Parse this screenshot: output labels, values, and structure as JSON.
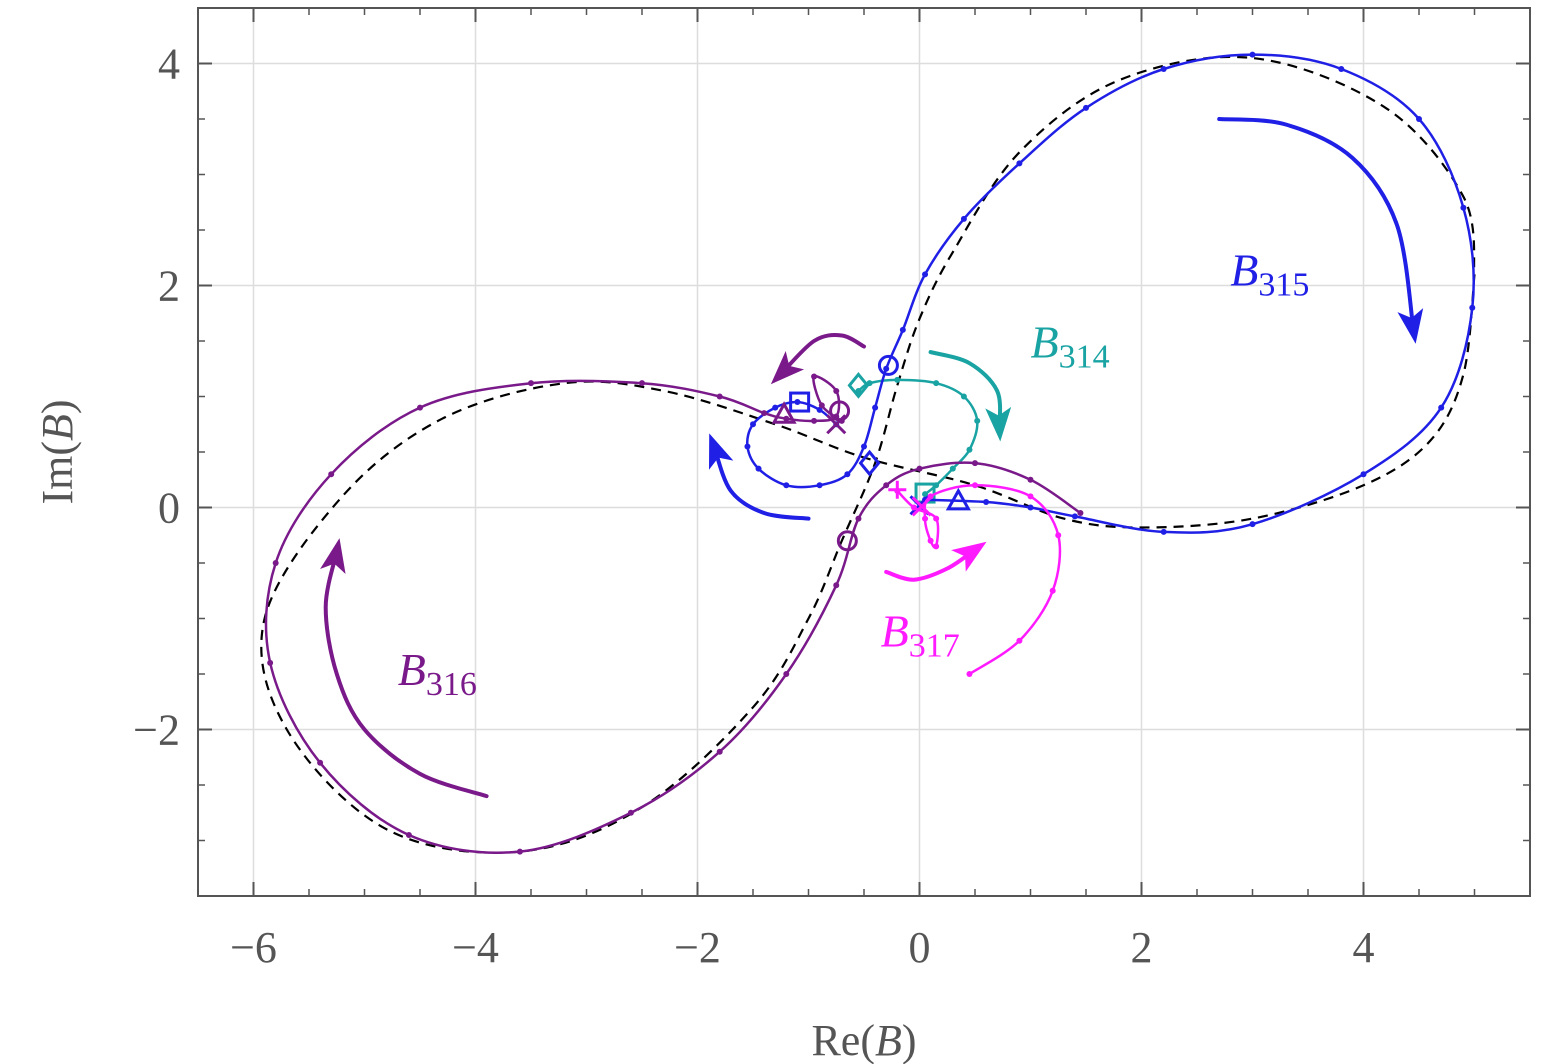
{
  "chart_data": {
    "type": "line",
    "xlabel_prefix": "Re(",
    "xlabel_var": "B",
    "xlabel_suffix": ")",
    "ylabel_prefix": "Im(",
    "ylabel_var": "B",
    "ylabel_suffix": ")",
    "xlim": [
      -6.5,
      5.5
    ],
    "ylim": [
      -3.5,
      4.5
    ],
    "x_ticks": [
      -6,
      -4,
      -2,
      0,
      2,
      4
    ],
    "x_tick_labels": [
      "−6",
      "−4",
      "−2",
      "0",
      "2",
      "4"
    ],
    "y_ticks": [
      -2,
      0,
      2,
      4
    ],
    "y_tick_labels": [
      "−2",
      "0",
      "2",
      "4"
    ],
    "grid": true,
    "colors": {
      "reference": "#000000",
      "B314": "#1aa3a3",
      "B315": "#1f1fe6",
      "B316": "#7a1a8a",
      "B317": "#ff1aff"
    },
    "reference_curve": {
      "style": "dashed",
      "points": [
        [
          5.0,
          2.1
        ],
        [
          4.9,
          1.2
        ],
        [
          4.6,
          0.6
        ],
        [
          4.0,
          0.2
        ],
        [
          3.0,
          -0.1
        ],
        [
          2.0,
          -0.18
        ],
        [
          1.3,
          -0.1
        ],
        [
          0.5,
          0.2
        ],
        [
          -0.5,
          0.45
        ],
        [
          -1.3,
          0.75
        ],
        [
          -2.3,
          1.05
        ],
        [
          -3.2,
          1.12
        ],
        [
          -4.3,
          0.8
        ],
        [
          -5.2,
          0.1
        ],
        [
          -5.9,
          -1.0
        ],
        [
          -5.7,
          -2.0
        ],
        [
          -4.8,
          -2.9
        ],
        [
          -3.6,
          -3.1
        ],
        [
          -2.5,
          -2.7
        ],
        [
          -1.5,
          -1.8
        ],
        [
          -1.0,
          -1.0
        ],
        [
          -0.7,
          -0.3
        ],
        [
          -0.4,
          0.4
        ],
        [
          -0.2,
          1.1
        ],
        [
          0.0,
          1.7
        ],
        [
          0.3,
          2.3
        ],
        [
          0.9,
          3.2
        ],
        [
          1.8,
          3.85
        ],
        [
          3.0,
          4.05
        ],
        [
          4.2,
          3.6
        ],
        [
          4.9,
          2.8
        ],
        [
          5.0,
          2.1
        ]
      ]
    },
    "series": [
      {
        "name": "B314",
        "label_sub": "314",
        "points": [
          [
            -0.55,
            1.05
          ],
          [
            -0.45,
            1.12
          ],
          [
            -0.2,
            1.15
          ],
          [
            0.15,
            1.12
          ],
          [
            0.4,
            1.0
          ],
          [
            0.52,
            0.78
          ],
          [
            0.45,
            0.52
          ],
          [
            0.3,
            0.35
          ],
          [
            0.15,
            0.2
          ],
          [
            0.05,
            0.12
          ]
        ],
        "markers": [
          {
            "shape": "diamond",
            "x": -0.55,
            "y": 1.1
          },
          {
            "shape": "square",
            "x": 0.05,
            "y": 0.13
          }
        ],
        "arrow": {
          "points": [
            [
              0.1,
              1.4
            ],
            [
              0.45,
              1.3
            ],
            [
              0.7,
              1.05
            ],
            [
              0.72,
              0.72
            ]
          ]
        },
        "label_pos": [
          1.0,
          1.35
        ]
      },
      {
        "name": "B315",
        "label_sub": "315",
        "points": [
          [
            0.05,
            0.07
          ],
          [
            0.6,
            0.05
          ],
          [
            1.0,
            0.0
          ],
          [
            1.4,
            -0.08
          ],
          [
            2.2,
            -0.22
          ],
          [
            3.0,
            -0.15
          ],
          [
            4.0,
            0.3
          ],
          [
            4.7,
            0.9
          ],
          [
            4.98,
            1.8
          ],
          [
            4.9,
            2.7
          ],
          [
            4.5,
            3.5
          ],
          [
            3.8,
            3.95
          ],
          [
            3.0,
            4.08
          ],
          [
            2.2,
            3.95
          ],
          [
            1.5,
            3.6
          ],
          [
            0.9,
            3.1
          ],
          [
            0.4,
            2.6
          ],
          [
            0.05,
            2.1
          ],
          [
            -0.15,
            1.6
          ],
          [
            -0.3,
            1.25
          ],
          [
            -0.4,
            0.9
          ],
          [
            -0.5,
            0.55
          ],
          [
            -0.65,
            0.3
          ],
          [
            -0.9,
            0.2
          ],
          [
            -1.2,
            0.2
          ],
          [
            -1.45,
            0.35
          ],
          [
            -1.55,
            0.55
          ],
          [
            -1.5,
            0.75
          ],
          [
            -1.3,
            0.9
          ],
          [
            -1.1,
            0.95
          ],
          [
            -0.9,
            0.88
          ],
          [
            -0.75,
            0.75
          ]
        ],
        "markers": [
          {
            "shape": "circle",
            "x": -0.28,
            "y": 1.28
          },
          {
            "shape": "square",
            "x": -1.08,
            "y": 0.95
          },
          {
            "shape": "diamond",
            "x": -0.45,
            "y": 0.4
          },
          {
            "shape": "triangle",
            "x": 0.35,
            "y": 0.06
          },
          {
            "shape": "cross",
            "x": 0.0,
            "y": 0.02
          }
        ],
        "arrow": {
          "points": [
            [
              2.7,
              3.5
            ],
            [
              3.3,
              3.45
            ],
            [
              3.9,
              3.15
            ],
            [
              4.3,
              2.55
            ],
            [
              4.45,
              1.6
            ]
          ]
        },
        "arrow2": {
          "points": [
            [
              -1.0,
              -0.1
            ],
            [
              -1.4,
              -0.05
            ],
            [
              -1.7,
              0.15
            ],
            [
              -1.85,
              0.55
            ]
          ]
        },
        "label_pos": [
          2.8,
          2.0
        ]
      },
      {
        "name": "B316",
        "label_sub": "316",
        "points": [
          [
            1.45,
            -0.05
          ],
          [
            1.0,
            0.25
          ],
          [
            0.5,
            0.4
          ],
          [
            0.0,
            0.35
          ],
          [
            -0.3,
            0.2
          ],
          [
            -0.55,
            -0.1
          ],
          [
            -0.75,
            -0.7
          ],
          [
            -1.2,
            -1.5
          ],
          [
            -1.8,
            -2.2
          ],
          [
            -2.6,
            -2.75
          ],
          [
            -3.6,
            -3.1
          ],
          [
            -4.6,
            -2.95
          ],
          [
            -5.4,
            -2.3
          ],
          [
            -5.85,
            -1.4
          ],
          [
            -5.8,
            -0.5
          ],
          [
            -5.3,
            0.3
          ],
          [
            -4.5,
            0.9
          ],
          [
            -3.5,
            1.12
          ],
          [
            -2.5,
            1.12
          ],
          [
            -1.8,
            1.0
          ],
          [
            -1.4,
            0.85
          ],
          [
            -1.2,
            0.8
          ],
          [
            -0.95,
            0.78
          ],
          [
            -0.75,
            0.82
          ],
          [
            -0.75,
            1.05
          ],
          [
            -0.95,
            1.18
          ],
          [
            -0.88,
            0.92
          ],
          [
            -0.7,
            0.78
          ]
        ],
        "markers": [
          {
            "shape": "circle",
            "x": -0.65,
            "y": -0.3
          },
          {
            "shape": "triangle",
            "x": -1.22,
            "y": 0.84
          },
          {
            "shape": "circle",
            "x": -0.72,
            "y": 0.87
          },
          {
            "shape": "cross",
            "x": -0.75,
            "y": 0.75
          }
        ],
        "arrow": {
          "points": [
            [
              -3.9,
              -2.6
            ],
            [
              -4.5,
              -2.4
            ],
            [
              -5.0,
              -2.0
            ],
            [
              -5.25,
              -1.5
            ],
            [
              -5.35,
              -0.9
            ],
            [
              -5.25,
              -0.4
            ]
          ]
        },
        "arrow2": {
          "points": [
            [
              -0.5,
              1.45
            ],
            [
              -0.7,
              1.55
            ],
            [
              -0.95,
              1.5
            ],
            [
              -1.25,
              1.2
            ]
          ]
        },
        "label_pos": [
          -4.7,
          -1.6
        ]
      },
      {
        "name": "B317",
        "label_sub": "317",
        "points": [
          [
            0.45,
            -1.5
          ],
          [
            0.9,
            -1.2
          ],
          [
            1.2,
            -0.75
          ],
          [
            1.25,
            -0.25
          ],
          [
            1.0,
            0.1
          ],
          [
            0.5,
            0.2
          ],
          [
            0.1,
            0.1
          ],
          [
            0.05,
            -0.1
          ],
          [
            0.1,
            -0.3
          ],
          [
            0.15,
            -0.35
          ],
          [
            0.15,
            -0.1
          ],
          [
            -0.05,
            0.0
          ],
          [
            -0.2,
            0.15
          ]
        ],
        "markers": [
          {
            "shape": "plus",
            "x": -0.2,
            "y": 0.16
          },
          {
            "shape": "cross",
            "x": 0.02,
            "y": 0.01
          }
        ],
        "arrow": {
          "points": [
            [
              -0.3,
              -0.58
            ],
            [
              -0.05,
              -0.65
            ],
            [
              0.25,
              -0.55
            ],
            [
              0.5,
              -0.38
            ]
          ]
        },
        "label_pos": [
          -0.35,
          -1.25
        ]
      }
    ]
  }
}
